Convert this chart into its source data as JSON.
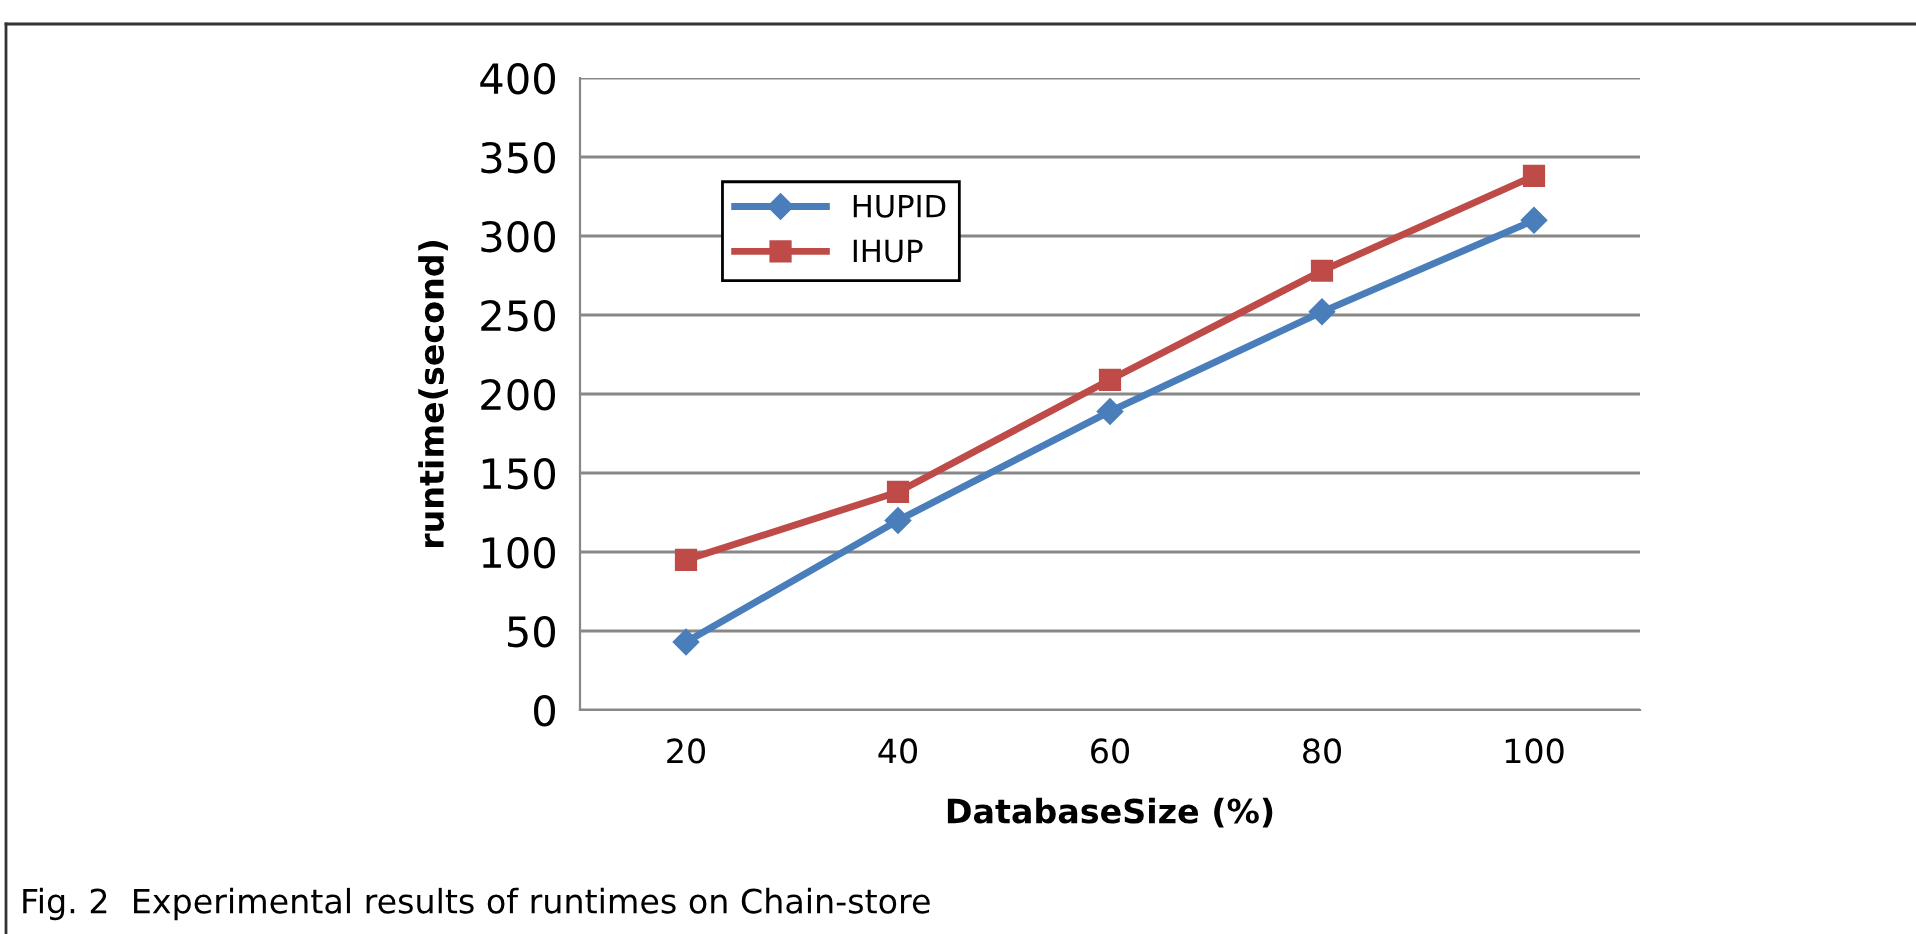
{
  "chart_data": {
    "type": "line",
    "xlabel": "DatabaseSize (%)",
    "ylabel": "runtime(second)",
    "categories": [
      "20",
      "40",
      "60",
      "80",
      "100"
    ],
    "series": [
      {
        "name": "HUPID",
        "color": "#4a7ebb",
        "marker": "diamond",
        "values": [
          43,
          120,
          189,
          252,
          310
        ]
      },
      {
        "name": "IHUP",
        "color": "#be4b48",
        "marker": "square",
        "values": [
          95,
          138,
          209,
          278,
          338
        ]
      }
    ],
    "ylim": [
      0,
      400
    ],
    "yticks": [
      0,
      50,
      100,
      150,
      200,
      250,
      300,
      350,
      400
    ],
    "grid": "y",
    "legend": "top left",
    "line_style": "solid",
    "annotations": [
      "Fig. 2  Experimental results of runtimes on Chain-store"
    ]
  }
}
